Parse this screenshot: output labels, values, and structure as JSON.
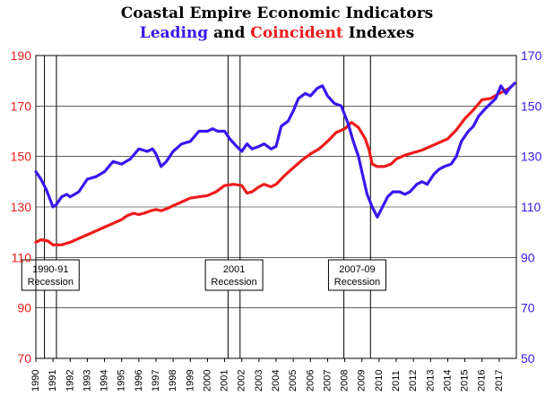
{
  "chart_data": {
    "type": "line",
    "title": "Coastal Empire Economic Indicators",
    "subtitle_parts": [
      {
        "text": "Leading",
        "color": "#3b16ee"
      },
      {
        "text": " and ",
        "color": "#000000"
      },
      {
        "text": "Coincident",
        "color": "#ee1b1b"
      },
      {
        "text": " Indexes",
        "color": "#000000"
      }
    ],
    "x_ticks": [
      "1990",
      "1991",
      "1992",
      "1993",
      "1994",
      "1995",
      "1996",
      "1997",
      "1998",
      "1999",
      "2000",
      "2001",
      "2002",
      "2003",
      "2004",
      "2005",
      "2006",
      "2007",
      "2008",
      "2009",
      "2010",
      "2011",
      "2012",
      "2013",
      "2014",
      "2015",
      "2016",
      "2017"
    ],
    "xlim": [
      1990,
      2018
    ],
    "y_left": {
      "ticks": [
        "70",
        "90",
        "110",
        "130",
        "150",
        "170",
        "190"
      ],
      "lim": [
        70,
        190
      ],
      "color": "#ee1b1b"
    },
    "y_right": {
      "ticks": [
        "50",
        "70",
        "90",
        "110",
        "130",
        "150",
        "170"
      ],
      "lim": [
        50,
        170
      ],
      "color": "#3b16ee"
    },
    "grid": "horizontal",
    "series": [
      {
        "name": "Coincident",
        "axis": "left",
        "color": "#ee1b1b",
        "points": [
          [
            1990.0,
            116
          ],
          [
            1990.3,
            117
          ],
          [
            1990.7,
            116.5
          ],
          [
            1991.0,
            115
          ],
          [
            1991.5,
            115
          ],
          [
            1992.0,
            116
          ],
          [
            1992.5,
            117.5
          ],
          [
            1993.0,
            119
          ],
          [
            1993.5,
            120.5
          ],
          [
            1994.0,
            122
          ],
          [
            1994.5,
            123.5
          ],
          [
            1995.0,
            125
          ],
          [
            1995.3,
            126.5
          ],
          [
            1995.7,
            127.5
          ],
          [
            1996.0,
            127
          ],
          [
            1996.3,
            127.5
          ],
          [
            1996.7,
            128.5
          ],
          [
            1997.0,
            129
          ],
          [
            1997.3,
            128.5
          ],
          [
            1997.7,
            129.5
          ],
          [
            1998.0,
            130.5
          ],
          [
            1998.5,
            132
          ],
          [
            1999.0,
            133.5
          ],
          [
            1999.5,
            134
          ],
          [
            2000.0,
            134.5
          ],
          [
            2000.5,
            136
          ],
          [
            2001.0,
            138.5
          ],
          [
            2001.5,
            139
          ],
          [
            2002.0,
            138.5
          ],
          [
            2002.3,
            135.5
          ],
          [
            2002.6,
            136
          ],
          [
            2003.0,
            138
          ],
          [
            2003.3,
            139
          ],
          [
            2003.7,
            138
          ],
          [
            2004.0,
            139
          ],
          [
            2004.5,
            142.5
          ],
          [
            2005.0,
            145.5
          ],
          [
            2005.5,
            148.5
          ],
          [
            2006.0,
            151
          ],
          [
            2006.5,
            153
          ],
          [
            2007.0,
            156
          ],
          [
            2007.5,
            159.5
          ],
          [
            2008.0,
            161
          ],
          [
            2008.4,
            163.5
          ],
          [
            2008.8,
            161.5
          ],
          [
            2009.2,
            157
          ],
          [
            2009.4,
            153
          ],
          [
            2009.6,
            147
          ],
          [
            2009.9,
            146
          ],
          [
            2010.3,
            146
          ],
          [
            2010.7,
            147
          ],
          [
            2011.0,
            149
          ],
          [
            2011.5,
            150.5
          ],
          [
            2012.0,
            151.5
          ],
          [
            2012.5,
            152.5
          ],
          [
            2013.0,
            154
          ],
          [
            2013.5,
            155.5
          ],
          [
            2014.0,
            157
          ],
          [
            2014.5,
            160.5
          ],
          [
            2015.0,
            165
          ],
          [
            2015.5,
            168.5
          ],
          [
            2016.0,
            172.5
          ],
          [
            2016.5,
            173
          ],
          [
            2017.0,
            175
          ],
          [
            2017.3,
            176
          ],
          [
            2017.6,
            177
          ],
          [
            2017.9,
            179
          ]
        ]
      },
      {
        "name": "Leading",
        "axis": "right",
        "color": "#3b16ee",
        "points": [
          [
            1990.0,
            124
          ],
          [
            1990.3,
            121
          ],
          [
            1990.6,
            117
          ],
          [
            1991.0,
            110
          ],
          [
            1991.2,
            111
          ],
          [
            1991.5,
            114
          ],
          [
            1991.8,
            115
          ],
          [
            1992.0,
            114
          ],
          [
            1992.5,
            116
          ],
          [
            1993.0,
            121
          ],
          [
            1993.5,
            122
          ],
          [
            1994.0,
            124
          ],
          [
            1994.5,
            128
          ],
          [
            1995.0,
            127
          ],
          [
            1995.5,
            129
          ],
          [
            1996.0,
            133
          ],
          [
            1996.5,
            132
          ],
          [
            1996.8,
            133
          ],
          [
            1997.0,
            131
          ],
          [
            1997.3,
            126
          ],
          [
            1997.6,
            128
          ],
          [
            1998.0,
            132
          ],
          [
            1998.5,
            135
          ],
          [
            1999.0,
            136
          ],
          [
            1999.5,
            140
          ],
          [
            2000.0,
            140
          ],
          [
            2000.3,
            141
          ],
          [
            2000.6,
            140
          ],
          [
            2001.0,
            140
          ],
          [
            2001.3,
            137
          ],
          [
            2001.7,
            134
          ],
          [
            2002.0,
            132
          ],
          [
            2002.3,
            135
          ],
          [
            2002.6,
            133
          ],
          [
            2003.0,
            134
          ],
          [
            2003.3,
            135
          ],
          [
            2003.7,
            133
          ],
          [
            2004.0,
            134
          ],
          [
            2004.3,
            142
          ],
          [
            2004.7,
            144
          ],
          [
            2005.0,
            148
          ],
          [
            2005.3,
            153
          ],
          [
            2005.7,
            155
          ],
          [
            2006.0,
            154
          ],
          [
            2006.4,
            157
          ],
          [
            2006.7,
            158
          ],
          [
            2007.0,
            154
          ],
          [
            2007.4,
            151
          ],
          [
            2007.8,
            150
          ],
          [
            2008.2,
            143
          ],
          [
            2008.5,
            136
          ],
          [
            2008.8,
            130
          ],
          [
            2009.0,
            124
          ],
          [
            2009.3,
            115
          ],
          [
            2009.6,
            110
          ],
          [
            2009.9,
            106
          ],
          [
            2010.2,
            110
          ],
          [
            2010.5,
            114
          ],
          [
            2010.8,
            116
          ],
          [
            2011.2,
            116
          ],
          [
            2011.5,
            115
          ],
          [
            2011.8,
            116
          ],
          [
            2012.2,
            119
          ],
          [
            2012.5,
            120
          ],
          [
            2012.8,
            119
          ],
          [
            2013.2,
            123
          ],
          [
            2013.5,
            125
          ],
          [
            2013.8,
            126
          ],
          [
            2014.2,
            127
          ],
          [
            2014.5,
            130
          ],
          [
            2014.8,
            136
          ],
          [
            2015.2,
            140
          ],
          [
            2015.5,
            142
          ],
          [
            2015.8,
            146
          ],
          [
            2016.2,
            149
          ],
          [
            2016.5,
            151
          ],
          [
            2016.8,
            153
          ],
          [
            2017.1,
            158
          ],
          [
            2017.4,
            155
          ],
          [
            2017.6,
            157
          ],
          [
            2017.9,
            159
          ]
        ]
      }
    ],
    "recessions": [
      {
        "label": "1990-91",
        "sublabel": "Recession",
        "start": 1990.5,
        "end": 1991.2
      },
      {
        "label": "2001",
        "sublabel": "Recession",
        "start": 2001.2,
        "end": 2001.9
      },
      {
        "label": "2007-09",
        "sublabel": "Recession",
        "start": 2007.95,
        "end": 2009.5
      }
    ]
  }
}
